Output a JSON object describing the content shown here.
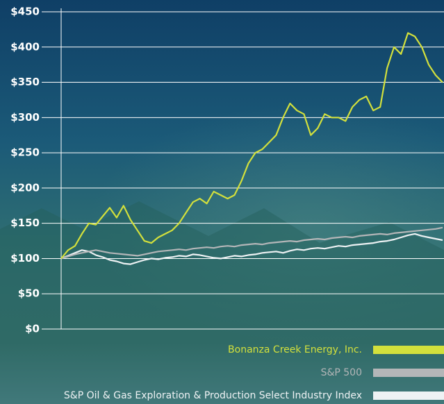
{
  "chart_data": {
    "type": "line",
    "series": [
      {
        "name": "Bonanza Creek Energy, Inc.",
        "color": "#d3e03c",
        "values": [
          100,
          112,
          118,
          135,
          150,
          148,
          160,
          172,
          158,
          175,
          155,
          140,
          125,
          122,
          130,
          135,
          140,
          150,
          165,
          180,
          185,
          178,
          195,
          190,
          185,
          190,
          210,
          235,
          250,
          255,
          265,
          275,
          300,
          320,
          310,
          305,
          275,
          285,
          305,
          300,
          300,
          295,
          315,
          325,
          330,
          310,
          315,
          370,
          400,
          390,
          420,
          415,
          400,
          375,
          360,
          350
        ]
      },
      {
        "name": "S&P 500",
        "color": "#b4b6b8",
        "values": [
          100,
          103,
          106,
          108,
          110,
          112,
          110,
          108,
          107,
          106,
          105,
          104,
          106,
          108,
          110,
          111,
          112,
          113,
          112,
          114,
          115,
          116,
          115,
          117,
          118,
          117,
          119,
          120,
          121,
          120,
          122,
          123,
          124,
          125,
          124,
          126,
          127,
          128,
          127,
          129,
          130,
          131,
          130,
          132,
          133,
          134,
          135,
          134,
          136,
          137,
          138,
          139,
          140,
          141,
          142,
          144
        ]
      },
      {
        "name": "S&P Oil & Gas Exploration & Production Select Industry Index",
        "color": "#eef2f4",
        "values": [
          100,
          104,
          108,
          112,
          110,
          105,
          102,
          98,
          96,
          93,
          92,
          95,
          98,
          100,
          99,
          101,
          102,
          104,
          103,
          106,
          105,
          103,
          101,
          100,
          102,
          104,
          103,
          105,
          106,
          108,
          109,
          110,
          108,
          111,
          113,
          112,
          114,
          115,
          114,
          116,
          118,
          117,
          119,
          120,
          121,
          122,
          124,
          125,
          127,
          130,
          133,
          135,
          132,
          130,
          128,
          126
        ]
      }
    ],
    "ylim": [
      0,
      450
    ],
    "yticks": [
      {
        "value": 0,
        "label": "$0"
      },
      {
        "value": 50,
        "label": "$50"
      },
      {
        "value": 100,
        "label": "$100"
      },
      {
        "value": 150,
        "label": "$150"
      },
      {
        "value": 200,
        "label": "$200"
      },
      {
        "value": 250,
        "label": "$250"
      },
      {
        "value": 300,
        "label": "$300"
      },
      {
        "value": 350,
        "label": "$350"
      },
      {
        "value": 400,
        "label": "$400"
      },
      {
        "value": 450,
        "label": "$450"
      }
    ],
    "grid": true,
    "legend": "bottom-right"
  }
}
